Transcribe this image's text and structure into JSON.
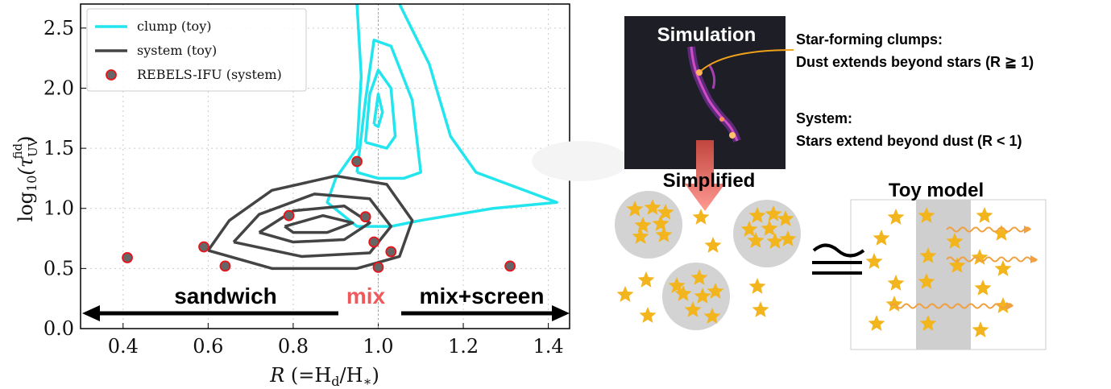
{
  "chart_data": {
    "type": "scatter",
    "xlabel": [
      "R",
      " (=H",
      "d",
      "/H",
      "∗",
      ")"
    ],
    "ylabel": [
      "log",
      "10",
      "(τ",
      "UV",
      "fid",
      ")"
    ],
    "xlim": [
      0.3,
      1.45
    ],
    "ylim": [
      0,
      2.7
    ],
    "xticks": [
      0.4,
      0.6,
      0.8,
      {
        "value": 1,
        "label": "1.0"
      },
      1.2,
      1.4
    ],
    "yticks": [
      {
        "value": 0,
        "label": "0.0"
      },
      0.5,
      {
        "value": 1,
        "label": "1.0"
      },
      1.5,
      {
        "value": 2,
        "label": "2.0"
      },
      2.5
    ],
    "grid": true,
    "legend": "upper left",
    "vline": 1,
    "series": [
      {
        "name": "clump (toy)",
        "type": "contour",
        "color": "#22e5ee",
        "contours": [
          {
            "x": [
              0.95,
              0.96,
              0.95,
              0.9,
              0.88,
              0.95,
              1.03,
              1.1,
              1.27,
              1.42,
              1.23,
              1.17,
              1.12,
              1.05
            ],
            "y": [
              2.7,
              2.1,
              1.5,
              1.25,
              1.05,
              0.85,
              0.85,
              0.9,
              1.0,
              1.05,
              1.3,
              1.6,
              2.2,
              2.7
            ]
          },
          {
            "x": [
              0.95,
              0.97,
              0.99,
              1.03,
              1.08,
              1.1,
              1.06,
              1.0,
              0.95
            ],
            "y": [
              1.3,
              1.9,
              2.4,
              2.35,
              1.9,
              1.3,
              1.25,
              1.25,
              1.3
            ]
          },
          {
            "x": [
              0.97,
              0.98,
              1.0,
              1.03,
              1.04,
              1.02,
              0.97
            ],
            "y": [
              1.55,
              1.95,
              2.15,
              2.0,
              1.6,
              1.5,
              1.55
            ]
          },
          {
            "x": [
              0.99,
              1.0,
              1.01,
              1.0,
              0.99
            ],
            "y": [
              1.7,
              1.95,
              1.8,
              1.68,
              1.7
            ]
          }
        ]
      },
      {
        "name": "system (toy)",
        "type": "contour",
        "color": "#444444",
        "contours": [
          {
            "x": [
              0.6,
              0.65,
              0.75,
              0.9,
              1.02,
              1.08,
              1.05,
              0.95,
              0.75,
              0.6
            ],
            "y": [
              0.65,
              0.9,
              1.15,
              1.27,
              1.2,
              0.9,
              0.6,
              0.5,
              0.5,
              0.65
            ]
          },
          {
            "x": [
              0.66,
              0.72,
              0.85,
              0.98,
              1.03,
              0.98,
              0.82,
              0.66
            ],
            "y": [
              0.72,
              0.95,
              1.12,
              1.08,
              0.85,
              0.63,
              0.6,
              0.72
            ]
          },
          {
            "x": [
              0.72,
              0.8,
              0.92,
              0.98,
              0.92,
              0.8,
              0.72
            ],
            "y": [
              0.8,
              0.98,
              1.02,
              0.88,
              0.74,
              0.72,
              0.8
            ]
          },
          {
            "x": [
              0.78,
              0.87,
              0.94,
              0.88,
              0.8,
              0.78
            ],
            "y": [
              0.85,
              0.94,
              0.88,
              0.8,
              0.8,
              0.85
            ]
          }
        ]
      },
      {
        "name": "REBELS-IFU (system)",
        "type": "scatter",
        "color": "#666666",
        "edgecolor": "#e8141a",
        "x": [
          0.41,
          0.59,
          0.64,
          0.79,
          0.95,
          0.97,
          0.99,
          1.0,
          1.03,
          1.31
        ],
        "y": [
          0.59,
          0.68,
          0.52,
          0.94,
          1.39,
          0.93,
          0.72,
          0.51,
          0.64,
          0.52
        ]
      }
    ],
    "annotations": [
      "sandwich",
      "mix",
      "mix+screen"
    ]
  },
  "diagram": {
    "simulation": "Simulation",
    "clumps_title": "Star-forming clumps:",
    "clumps_text": "Dust extends beyond stars (R ≧ 1)",
    "system_title": "System:",
    "system_text": "Stars extend beyond dust (R < 1)",
    "simplified": "Simplified",
    "toy_model": "Toy model"
  }
}
